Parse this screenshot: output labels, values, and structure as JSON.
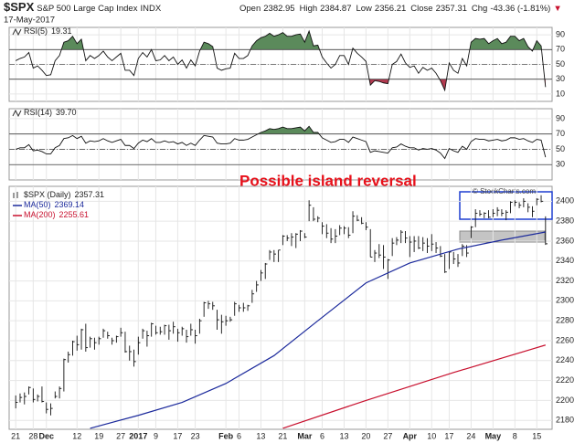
{
  "header": {
    "symbol": "$SPX",
    "name": "S&P 500 Large Cap Index",
    "exchange": "INDX",
    "date": "17-May-2017",
    "open_label": "Open",
    "open": 2382.95,
    "high_label": "High",
    "low_label": "Low",
    "close_label": "Close",
    "chg_label": "Chg",
    "chg": "-43.36 (-1.81%)",
    "arrow": "▼",
    "copyright": "© StockCharts.com"
  },
  "chart_data": [
    {
      "type": "line",
      "title": "RSI(5)",
      "value_label": "19.31",
      "color": "#111",
      "fill_high": "#5b8a5b",
      "fill_low": "#b2394f",
      "ylim": [
        0,
        100
      ],
      "yticks": [
        10,
        30,
        50,
        70,
        90
      ],
      "levels": [
        30,
        70
      ],
      "midline": 50,
      "values": [
        55,
        58,
        60,
        66,
        45,
        48,
        42,
        35,
        36,
        55,
        62,
        80,
        82,
        88,
        78,
        84,
        55,
        62,
        58,
        62,
        68,
        60,
        55,
        60,
        65,
        42,
        42,
        35,
        58,
        66,
        60,
        70,
        55,
        56,
        62,
        55,
        60,
        50,
        56,
        45,
        56,
        48,
        68,
        80,
        78,
        74,
        45,
        42,
        44,
        45,
        65,
        58,
        58,
        62,
        75,
        82,
        86,
        88,
        92,
        88,
        90,
        93,
        88,
        88,
        90,
        91,
        80,
        95,
        75,
        76,
        60,
        52,
        45,
        50,
        62,
        62,
        50,
        72,
        65,
        60,
        54,
        22,
        28,
        27,
        25,
        24,
        50,
        54,
        64,
        52,
        46,
        48,
        38,
        46,
        42,
        45,
        38,
        28,
        15,
        52,
        42,
        38,
        58,
        48,
        80,
        85,
        84,
        85,
        78,
        82,
        85,
        78,
        80,
        88,
        88,
        82,
        85,
        74,
        68,
        82,
        75,
        19.31
      ]
    },
    {
      "type": "line",
      "title": "RSI(14)",
      "value_label": "39.70",
      "color": "#111",
      "fill_high": "#5b8a5b",
      "fill_low": "#b2394f",
      "ylim": [
        10,
        103
      ],
      "yticks": [
        30,
        50,
        70,
        90
      ],
      "levels": [
        30,
        70
      ],
      "midline": 50,
      "values": [
        50,
        52,
        52,
        56,
        48,
        49,
        47,
        44,
        44,
        52,
        55,
        64,
        65,
        68,
        64,
        67,
        58,
        61,
        60,
        61,
        64,
        61,
        59,
        61,
        63,
        55,
        55,
        51,
        58,
        62,
        60,
        64,
        59,
        59,
        61,
        59,
        60,
        57,
        59,
        55,
        58,
        55,
        62,
        68,
        67,
        66,
        58,
        57,
        57,
        58,
        64,
        62,
        62,
        63,
        66,
        69,
        72,
        74,
        77,
        76,
        77,
        79,
        77,
        77,
        78,
        79,
        74,
        80,
        72,
        72,
        65,
        62,
        59,
        60,
        63,
        63,
        59,
        66,
        64,
        62,
        60,
        46,
        48,
        47,
        46,
        45,
        52,
        53,
        57,
        54,
        52,
        52,
        49,
        51,
        50,
        51,
        49,
        45,
        38,
        51,
        48,
        46,
        54,
        50,
        60,
        64,
        63,
        63,
        61,
        62,
        63,
        61,
        62,
        65,
        65,
        63,
        64,
        61,
        59,
        63,
        62,
        39.7
      ]
    },
    {
      "type": "ohlc",
      "annotation": "Possible island reversal",
      "ylim": [
        2171,
        2415
      ],
      "yticks": [
        2180,
        2200,
        2220,
        2240,
        2260,
        2280,
        2300,
        2320,
        2340,
        2360,
        2380,
        2400
      ],
      "xlim": [
        -1.5,
        122.5
      ],
      "xticks": [
        {
          "value": 0,
          "label": "21"
        },
        {
          "value": 4,
          "label": "28"
        },
        {
          "value": 7,
          "label": "Dec"
        },
        {
          "value": 14,
          "label": "12"
        },
        {
          "value": 19,
          "label": "19"
        },
        {
          "value": 24,
          "label": "27"
        },
        {
          "value": 28,
          "label": "2017"
        },
        {
          "value": 32,
          "label": "9"
        },
        {
          "value": 37,
          "label": "17"
        },
        {
          "value": 41,
          "label": "23"
        },
        {
          "value": 48,
          "label": "Feb"
        },
        {
          "value": 51,
          "label": "6"
        },
        {
          "value": 56,
          "label": "13"
        },
        {
          "value": 61,
          "label": "21"
        },
        {
          "value": 66,
          "label": "Mar"
        },
        {
          "value": 70,
          "label": "6"
        },
        {
          "value": 75,
          "label": "13"
        },
        {
          "value": 80,
          "label": "20"
        },
        {
          "value": 85,
          "label": "27"
        },
        {
          "value": 90,
          "label": "Apr"
        },
        {
          "value": 95,
          "label": "10"
        },
        {
          "value": 99,
          "label": "17"
        },
        {
          "value": 104,
          "label": "24"
        },
        {
          "value": 109,
          "label": "May"
        },
        {
          "value": 114,
          "label": "8"
        },
        {
          "value": 119,
          "label": "15"
        }
      ],
      "series": [
        {
          "name": "$SPX (Daily)",
          "value_label": "2357.31",
          "color": "#111",
          "high": [
            2205,
            2207,
            2208,
            2214,
            2212,
            2206,
            2214,
            2198,
            2197,
            2209,
            2214,
            2242,
            2249,
            2260,
            2265,
            2272,
            2277,
            2264,
            2263,
            2264,
            2272,
            2269,
            2263,
            2265,
            2273,
            2269,
            2255,
            2251,
            2264,
            2272,
            2270,
            2278,
            2275,
            2274,
            2276,
            2276,
            2279,
            2272,
            2274,
            2271,
            2277,
            2271,
            2282,
            2299,
            2300,
            2299,
            2291,
            2286,
            2285,
            2284,
            2299,
            2296,
            2298,
            2296,
            2311,
            2320,
            2331,
            2338,
            2351,
            2351,
            2351,
            2366,
            2366,
            2368,
            2368,
            2371,
            2368,
            2401,
            2394,
            2385,
            2379,
            2377,
            2373,
            2372,
            2376,
            2375,
            2374,
            2390,
            2386,
            2384,
            2379,
            2372,
            2351,
            2357,
            2356,
            2342,
            2363,
            2364,
            2371,
            2370,
            2365,
            2365,
            2365,
            2364,
            2363,
            2367,
            2359,
            2355,
            2347,
            2349,
            2349,
            2347,
            2357,
            2356,
            2375,
            2392,
            2391,
            2389,
            2391,
            2392,
            2394,
            2392,
            2391,
            2400,
            2401,
            2399,
            2403,
            2398,
            2395,
            2403,
            2406,
            2384.87
          ],
          "low": [
            2192,
            2198,
            2196,
            2206,
            2198,
            2199,
            2198,
            2187,
            2185,
            2202,
            2202,
            2209,
            2238,
            2245,
            2250,
            2251,
            2249,
            2253,
            2251,
            2256,
            2263,
            2262,
            2256,
            2258,
            2264,
            2248,
            2240,
            2234,
            2246,
            2262,
            2254,
            2264,
            2266,
            2266,
            2266,
            2261,
            2267,
            2259,
            2265,
            2258,
            2265,
            2257,
            2267,
            2284,
            2292,
            2291,
            2271,
            2267,
            2275,
            2279,
            2285,
            2289,
            2289,
            2290,
            2298,
            2309,
            2320,
            2322,
            2341,
            2339,
            2339,
            2356,
            2360,
            2355,
            2353,
            2360,
            2363,
            2380,
            2380,
            2379,
            2367,
            2363,
            2358,
            2358,
            2366,
            2367,
            2363,
            2368,
            2380,
            2377,
            2371,
            2344,
            2339,
            2343,
            2332,
            2322,
            2345,
            2356,
            2358,
            2358,
            2344,
            2349,
            2352,
            2350,
            2348,
            2350,
            2348,
            2344,
            2328,
            2332,
            2337,
            2334,
            2345,
            2344,
            2363,
            2374,
            2385,
            2383,
            2383,
            2384,
            2385,
            2385,
            2381,
            2388,
            2395,
            2393,
            2394,
            2389,
            2384,
            2396,
            2399,
            2356.21
          ],
          "close": [
            2198,
            2203,
            2204,
            2213,
            2201,
            2204,
            2199,
            2191,
            2192,
            2204,
            2212,
            2241,
            2246,
            2259,
            2256,
            2271,
            2253,
            2262,
            2258,
            2262,
            2270,
            2265,
            2260,
            2264,
            2268,
            2249,
            2249,
            2239,
            2258,
            2270,
            2265,
            2277,
            2268,
            2269,
            2275,
            2270,
            2274,
            2268,
            2272,
            2264,
            2271,
            2265,
            2280,
            2298,
            2297,
            2295,
            2281,
            2279,
            2280,
            2281,
            2297,
            2293,
            2293,
            2295,
            2307,
            2316,
            2328,
            2337,
            2349,
            2347,
            2351,
            2365,
            2363,
            2364,
            2367,
            2370,
            2364,
            2396,
            2382,
            2383,
            2375,
            2368,
            2362,
            2365,
            2373,
            2373,
            2366,
            2385,
            2381,
            2378,
            2374,
            2344,
            2348,
            2346,
            2344,
            2341,
            2358,
            2361,
            2369,
            2363,
            2359,
            2360,
            2353,
            2358,
            2355,
            2357,
            2353,
            2345,
            2329,
            2349,
            2342,
            2338,
            2355,
            2348,
            2374,
            2388,
            2387,
            2388,
            2384,
            2388,
            2391,
            2388,
            2389,
            2399,
            2399,
            2396,
            2400,
            2394,
            2390,
            2402,
            2400,
            2357.31
          ]
        },
        {
          "name": "MA(50)",
          "value_label": "2369.14",
          "color": "#1c2a9c",
          "x": [
            17,
            28,
            38,
            48,
            59,
            69,
            80,
            90,
            101,
            111,
            121
          ],
          "values": [
            2172,
            2185,
            2198,
            2217,
            2245,
            2280,
            2318,
            2338,
            2352,
            2361,
            2369.14
          ]
        },
        {
          "name": "MA(200)",
          "value_label": "2255.61",
          "color": "#c8102e",
          "x": [
            61,
            80,
            100,
            121
          ],
          "values": [
            2172,
            2200,
            2228,
            2255.61
          ]
        }
      ]
    }
  ]
}
